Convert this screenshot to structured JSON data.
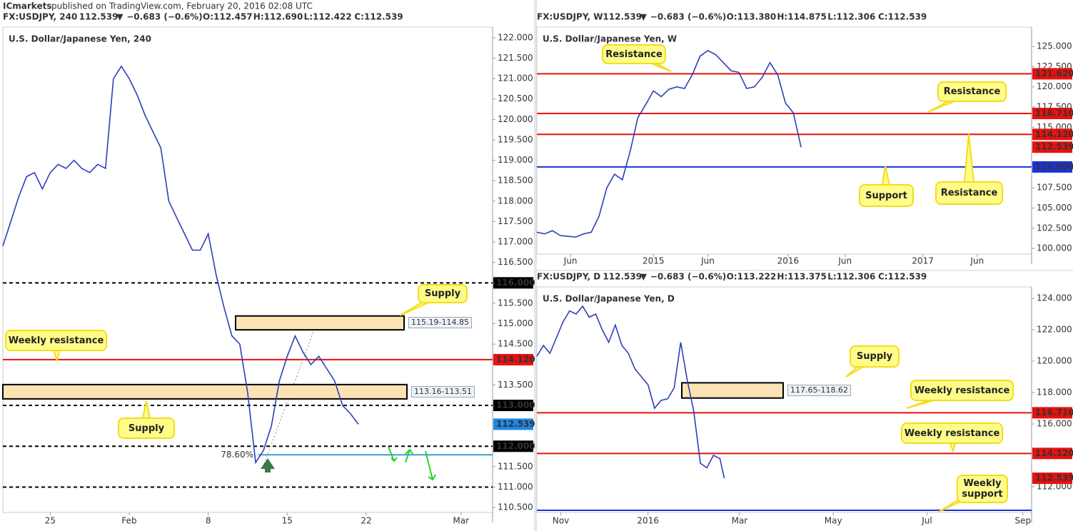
{
  "header": {
    "brand": "ICmarkets",
    "text": "published on TradingView.com, February 20, 2016 02:08 UTC"
  },
  "chart_data": [
    {
      "type": "line",
      "symbol": "FX:USDJPY, 240",
      "last_text": "112.539",
      "change": "−0.683 (−0.6%)",
      "ohlc": [
        "O:112.457",
        "H:112.690",
        "L:112.422",
        "C:112.539"
      ],
      "title": "U.S. Dollar/Japanese Yen, 240",
      "x": [
        0,
        1,
        2,
        3,
        4,
        5,
        6,
        7,
        8,
        9,
        10,
        11,
        12,
        13,
        14,
        15,
        16,
        17,
        18,
        19,
        20,
        21,
        22,
        23,
        24,
        25,
        26,
        27,
        28,
        29,
        30,
        31,
        32,
        33,
        34,
        35,
        36,
        37,
        38,
        39,
        40,
        41,
        42,
        43,
        44,
        45
      ],
      "series": [
        {
          "color": "#2b3fb8",
          "values": [
            116.9,
            117.5,
            118.1,
            118.6,
            118.7,
            118.3,
            118.7,
            118.9,
            118.8,
            119.0,
            118.8,
            118.7,
            118.9,
            118.8,
            121.0,
            121.3,
            121.0,
            120.6,
            120.1,
            119.7,
            119.3,
            118.0,
            117.6,
            117.2,
            116.8,
            116.8,
            117.2,
            116.2,
            115.4,
            114.7,
            114.5,
            113.3,
            111.6,
            111.9,
            112.5,
            113.6,
            114.2,
            114.7,
            114.3,
            114.0,
            114.2,
            113.9,
            113.6,
            113.0,
            112.8,
            112.539
          ]
        }
      ],
      "xlim": [
        0,
        62
      ],
      "xticks": [
        {
          "value": 6,
          "label": "25"
        },
        {
          "value": 16,
          "label": "Feb"
        },
        {
          "value": 26,
          "label": "8"
        },
        {
          "value": 36,
          "label": "15"
        },
        {
          "value": 46,
          "label": "22"
        },
        {
          "value": 58,
          "label": "Mar"
        }
      ],
      "ylim": [
        110.38,
        122.26
      ],
      "yticks": [
        {
          "value": 122,
          "label": "122.000"
        },
        {
          "value": 121.5,
          "label": "121.500"
        },
        {
          "value": 121,
          "label": "121.000"
        },
        {
          "value": 120.5,
          "label": "120.500"
        },
        {
          "value": 120,
          "label": "120.000"
        },
        {
          "value": 119.5,
          "label": "119.500"
        },
        {
          "value": 119,
          "label": "119.000"
        },
        {
          "value": 118.5,
          "label": "118.500"
        },
        {
          "value": 118,
          "label": "118.000"
        },
        {
          "value": 117.5,
          "label": "117.500"
        },
        {
          "value": 117,
          "label": "117.000"
        },
        {
          "value": 116.5,
          "label": "116.500"
        },
        {
          "value": 115.5,
          "label": "115.500"
        },
        {
          "value": 115,
          "label": "115.000"
        },
        {
          "value": 114.5,
          "label": "114.500"
        },
        {
          "value": 113.5,
          "label": "113.500"
        },
        {
          "value": 111.5,
          "label": "111.500"
        },
        {
          "value": 111,
          "label": "111.000"
        },
        {
          "value": 110.5,
          "label": "110.500"
        }
      ],
      "levels": [
        {
          "value": 116,
          "label": "116.000",
          "color": "#000000",
          "style": "dashed"
        },
        {
          "value": 114.12,
          "label": "114.120",
          "color": "#e8110f",
          "style": "solid"
        },
        {
          "value": 113,
          "label": "113.000",
          "color": "#000000",
          "style": "dashed"
        },
        {
          "value": 112,
          "label": "112.000",
          "color": "#000000",
          "style": "dashed"
        },
        {
          "value": 111,
          "color": "#000000",
          "style": "dashed"
        }
      ],
      "last": {
        "value": 112.539,
        "label": "112.539",
        "color": "#1e88e5"
      },
      "fib": {
        "value": 111.79,
        "label": "78.60%",
        "color": "#3d9fd8"
      },
      "zones": [
        {
          "label": "115.19-114.85",
          "high": 115.19,
          "low": 114.85
        },
        {
          "label": "113.16-113.51",
          "high": 113.51,
          "low": 113.16
        }
      ],
      "annotations": [
        "Supply",
        "Weekly resistance",
        "Supply"
      ]
    },
    {
      "type": "line",
      "symbol": "FX:USDJPY, W",
      "last_text": "112.539",
      "change": "−0.683 (−0.6%)",
      "ohlc": [
        "O:113.380",
        "H:114.875",
        "L:112.306",
        "C:112.539"
      ],
      "title": "U.S. Dollar/Japanese Yen, W",
      "x": [
        0,
        3,
        6,
        9,
        12,
        15,
        18,
        21,
        24,
        27,
        30,
        33,
        36,
        39,
        42,
        45,
        48,
        51,
        54,
        57,
        60,
        63,
        66,
        69,
        72,
        75,
        78,
        81,
        84,
        87,
        90,
        93,
        96,
        99,
        102
      ],
      "series": [
        {
          "color": "#2b3fb8",
          "values": [
            102.0,
            101.8,
            102.2,
            101.6,
            101.5,
            101.4,
            101.8,
            102.0,
            104.0,
            107.5,
            109.2,
            108.5,
            112.0,
            116.2,
            117.8,
            119.5,
            118.8,
            119.7,
            120.0,
            119.8,
            121.5,
            123.8,
            124.5,
            124.0,
            123.0,
            122.0,
            121.8,
            119.8,
            120.0,
            121.2,
            123.0,
            121.5,
            118.0,
            116.8,
            112.539
          ]
        }
      ],
      "xlim": [
        0,
        191
      ],
      "xticks": [
        {
          "value": 13,
          "label": "Jun"
        },
        {
          "value": 45,
          "label": "2015"
        },
        {
          "value": 66,
          "label": "Jun"
        },
        {
          "value": 97,
          "label": "2016"
        },
        {
          "value": 119,
          "label": "Jun"
        },
        {
          "value": 149,
          "label": "2017"
        },
        {
          "value": 170,
          "label": "Jun"
        }
      ],
      "ylim": [
        99.3,
        127.4
      ],
      "yticks": [
        {
          "value": 125,
          "label": "125.000"
        },
        {
          "value": 122.5,
          "label": "122.500"
        },
        {
          "value": 120,
          "label": "120.000"
        },
        {
          "value": 117.5,
          "label": "117.500"
        },
        {
          "value": 115,
          "label": "115.000"
        },
        {
          "value": 107.5,
          "label": "107.500"
        },
        {
          "value": 105,
          "label": "105.000"
        },
        {
          "value": 102.5,
          "label": "102.500"
        },
        {
          "value": 100,
          "label": "100.000"
        }
      ],
      "levels": [
        {
          "value": 121.62,
          "label": "121.620",
          "color": "#e8110f",
          "style": "solid"
        },
        {
          "value": 116.71,
          "label": "116.710",
          "color": "#e8110f",
          "style": "solid"
        },
        {
          "value": 114.12,
          "label": "114.120",
          "color": "#e8110f",
          "style": "solid"
        },
        {
          "value": 110.09,
          "label": "110.090",
          "color": "#1a33d6",
          "style": "solid"
        }
      ],
      "last": {
        "value": 112.539,
        "label": "112.539",
        "color": "#e8110f"
      },
      "zones": [],
      "annotations": [
        "Resistance",
        "Resistance",
        "Support",
        "Resistance"
      ]
    },
    {
      "type": "line",
      "symbol": "FX:USDJPY, D",
      "last_text": "112.539",
      "change": "−0.683 (−0.6%)",
      "ohlc": [
        "O:113.222",
        "H:113.375",
        "L:112.306",
        "C:112.539"
      ],
      "title": "U.S. Dollar/Japanese Yen, D",
      "x": [
        0,
        3,
        6,
        9,
        12,
        15,
        18,
        21,
        24,
        27,
        30,
        33,
        36,
        39,
        42,
        45,
        48,
        51,
        54,
        57,
        60,
        63,
        66,
        69,
        72,
        75,
        78,
        81,
        84,
        86
      ],
      "series": [
        {
          "color": "#2b3fb8",
          "values": [
            120.3,
            121.0,
            120.5,
            121.5,
            122.5,
            123.2,
            123.0,
            123.5,
            122.8,
            123.0,
            122.0,
            121.2,
            122.3,
            121.0,
            120.5,
            119.5,
            119.0,
            118.5,
            117.0,
            117.5,
            117.6,
            118.3,
            121.2,
            118.8,
            116.8,
            113.5,
            113.2,
            114.0,
            113.8,
            112.539
          ]
        }
      ],
      "xlim": [
        0,
        227
      ],
      "xticks": [
        {
          "value": 11,
          "label": "Nov"
        },
        {
          "value": 51,
          "label": "2016"
        },
        {
          "value": 93,
          "label": "Mar"
        },
        {
          "value": 136,
          "label": "May"
        },
        {
          "value": 179,
          "label": "Jul"
        },
        {
          "value": 223,
          "label": "Sep"
        }
      ],
      "ylim": [
        110.36,
        124.73
      ],
      "yticks": [
        {
          "value": 124,
          "label": "124.000"
        },
        {
          "value": 122,
          "label": "122.000"
        },
        {
          "value": 120,
          "label": "120.000"
        },
        {
          "value": 118,
          "label": "118.000"
        },
        {
          "value": 116,
          "label": "116.000"
        },
        {
          "value": 112,
          "label": "112.000"
        }
      ],
      "levels": [
        {
          "value": 116.71,
          "label": "116.710",
          "color": "#e8110f",
          "style": "solid"
        },
        {
          "value": 114.12,
          "label": "114.120",
          "color": "#e8110f",
          "style": "solid"
        },
        {
          "value": 110.09,
          "color": "#1a33d6",
          "style": "solid"
        }
      ],
      "last": {
        "value": 112.539,
        "label": "112.539",
        "color": "#e8110f"
      },
      "zones": [
        {
          "label": "117.65-118.62",
          "high": 118.62,
          "low": 117.65
        }
      ],
      "annotations": [
        "Supply",
        "Weekly resistance",
        "Weekly resistance",
        "Weekly support"
      ]
    }
  ]
}
